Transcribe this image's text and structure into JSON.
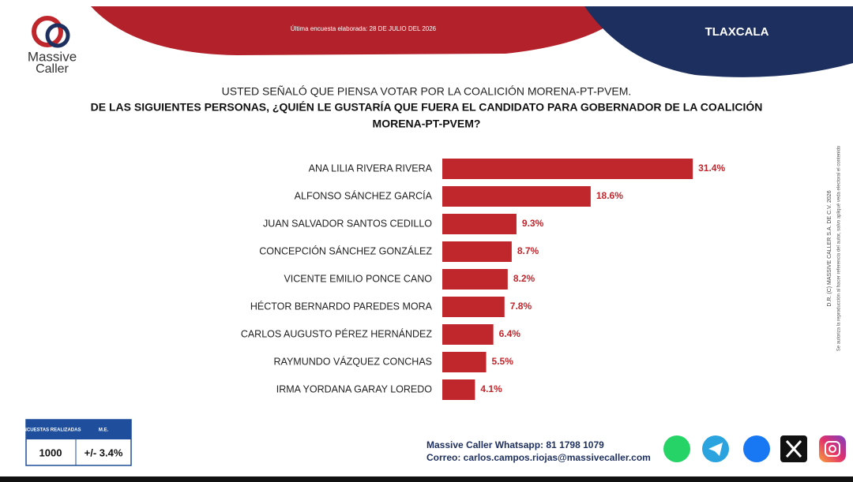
{
  "header": {
    "logo_line1": "Massive",
    "logo_line2": "Caller",
    "date_text": "Última encuesta elaborada: 28 DE JULIO DEL 2026",
    "region": "TLAXCALA"
  },
  "question": {
    "line1": "USTED SEÑALÓ QUE PIENSA VOTAR POR LA COALICIÓN MORENA-PT-PVEM.",
    "line2": "DE LAS SIGUIENTES PERSONAS, ¿QUIÉN LE GUSTARÍA QUE FUERA EL CANDIDATO PARA GOBERNADOR DE LA COALICIÓN",
    "line3": "MORENA-PT-PVEM?"
  },
  "chart_data": {
    "type": "bar",
    "orientation": "horizontal",
    "color": "#c0272d",
    "categories": [
      "ANA LILIA RIVERA RIVERA",
      "ALFONSO SÁNCHEZ GARCÍA",
      "JUAN SALVADOR SANTOS CEDILLO",
      "CONCEPCIÓN SÁNCHEZ GONZÁLEZ",
      "VICENTE EMILIO PONCE CANO",
      "HÉCTOR BERNARDO PAREDES MORA",
      "CARLOS AUGUSTO PÉREZ HERNÁNDEZ",
      "RAYMUNDO VÁZQUEZ CONCHAS",
      "IRMA YORDANA GARAY LOREDO"
    ],
    "values": [
      31.4,
      18.6,
      9.3,
      8.7,
      8.2,
      7.8,
      6.4,
      5.5,
      4.1
    ],
    "value_labels": [
      "31.4%",
      "18.6%",
      "9.3%",
      "8.7%",
      "8.2%",
      "7.8%",
      "6.4%",
      "5.5%",
      "4.1%"
    ]
  },
  "side_note": {
    "line1": "D.R. (C) MASSIVE CALLER S.A. DE C.V. 2026",
    "line2": "Se autoriza la reproducción al hacer referencia del autor, salvo apliqué veda electoral el contenido"
  },
  "stats": {
    "headers": [
      "ENCUESTAS REALIZADAS",
      "M.E."
    ],
    "values": [
      "1000",
      "+/- 3.4%"
    ]
  },
  "contact": {
    "whatsapp": "Massive Caller Whatsapp: 81 1798 1079",
    "email": "Correo: carlos.campos.riojas@massivecaller.com"
  }
}
